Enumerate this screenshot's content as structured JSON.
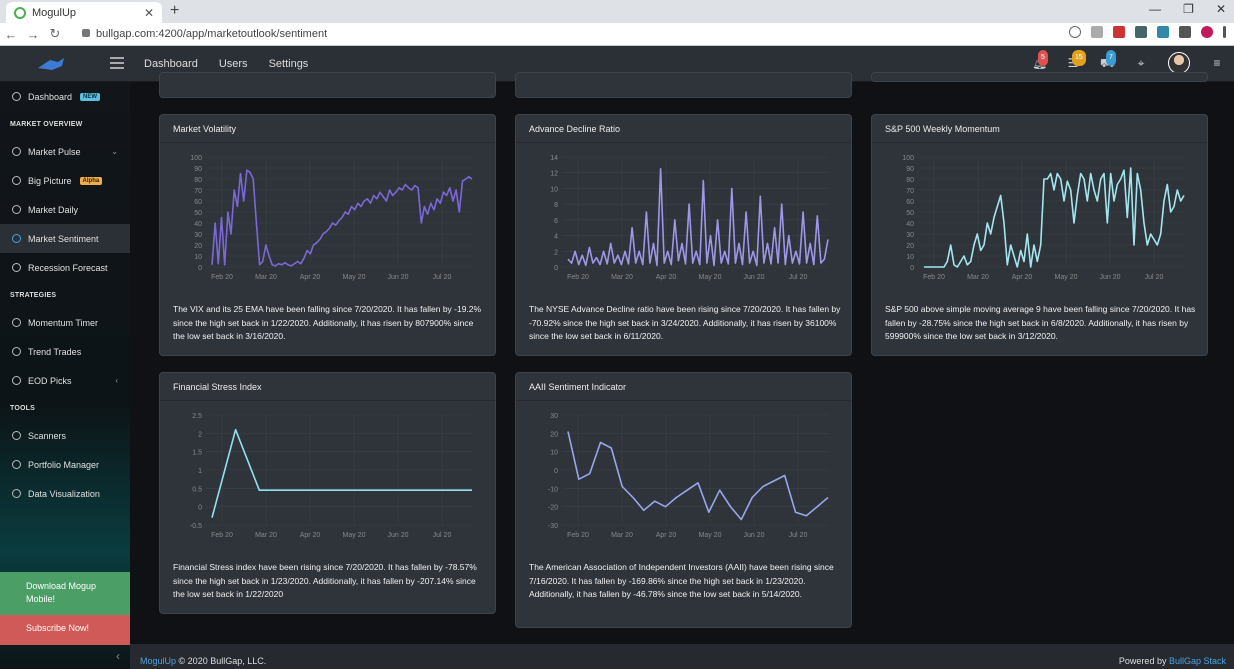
{
  "browser": {
    "tab_title": "MogulUp",
    "url": "bullgap.com:4200/app/marketoutlook/sentiment"
  },
  "header": {
    "nav": [
      "Dashboard",
      "Users",
      "Settings"
    ],
    "badges": {
      "notifications": "5",
      "list": "15",
      "cart": "7"
    }
  },
  "sidebar": {
    "dashboard": "Dashboard",
    "dashboard_tag": "NEW",
    "market_overview": "MARKET OVERVIEW",
    "market_pulse": "Market Pulse",
    "big_picture": "Big Picture",
    "big_picture_tag": "Alpha",
    "market_daily": "Market Daily",
    "market_sentiment": "Market Sentiment",
    "recession_forecast": "Recession Forecast",
    "strategies": "STRATEGIES",
    "momentum_timer": "Momentum Timer",
    "trend_trades": "Trend Trades",
    "eod_picks": "EOD Picks",
    "tools": "TOOLS",
    "scanners": "Scanners",
    "portfolio_manager": "Portfolio Manager",
    "data_visualization": "Data Visualization",
    "download": "Download Mogup Mobile!",
    "subscribe": "Subscribe Now!"
  },
  "cards": [
    {
      "title": "Market Volatility",
      "description": "The VIX and its 25 EMA have been falling since 7/20/2020. It has fallen by -19.2% since the high set back in 1/22/2020. Additionally, it has risen by 807900% since the low set back in 3/16/2020."
    },
    {
      "title": "Advance Decline Ratio",
      "description": "The NYSE Advance Decline ratio have been rising since 7/20/2020. It has fallen by -70.92% since the high set back in 3/24/2020. Additionally, it has risen by 36100% since the low set back in 6/11/2020."
    },
    {
      "title": "S&P 500 Weekly Momentum",
      "description": "S&P 500 above simple moving average 9 have been falling since 7/20/2020. It has fallen by -28.75% since the high set back in 6/8/2020. Additionally, it has risen by 599900% since the low set back in 3/12/2020."
    },
    {
      "title": "Financial Stress Index",
      "description": "Financial Stress index have been rising since 7/20/2020. It has fallen by -78.57% since the high set back in 1/23/2020. Additionally, it has fallen by -207.14% since the low set back in 1/22/2020"
    },
    {
      "title": "AAII Sentiment Indicator",
      "description": "The American Association of Independent Investors (AAII) have been rising since 7/16/2020. It has fallen by -169.86% since the high set back in 1/23/2020. Additionally, it has fallen by -46.78% since the low set back in 5/14/2020."
    }
  ],
  "chart_data": [
    {
      "type": "line",
      "title": "Market Volatility",
      "color": "#7b68d6",
      "x_ticks": [
        "Feb 20",
        "Mar 20",
        "Apr 20",
        "May 20",
        "Jun 20",
        "Jul 20"
      ],
      "ylim": [
        0,
        100
      ],
      "y_ticks": [
        0,
        10,
        20,
        30,
        40,
        50,
        60,
        70,
        80,
        90,
        100
      ],
      "values": [
        2,
        40,
        3,
        45,
        2,
        50,
        30,
        70,
        55,
        85,
        60,
        88,
        86,
        80,
        40,
        2,
        5,
        20,
        10,
        2,
        1,
        3,
        2,
        4,
        2,
        1,
        3,
        5,
        3,
        8,
        15,
        12,
        20,
        22,
        25,
        30,
        32,
        35,
        40,
        38,
        42,
        45,
        50,
        48,
        55,
        52,
        58,
        55,
        60,
        62,
        58,
        65,
        62,
        68,
        64,
        60,
        70,
        65,
        68,
        72,
        70,
        75,
        72,
        70,
        74,
        72,
        40,
        55,
        48,
        58,
        52,
        62,
        58,
        68,
        65,
        72,
        60,
        70,
        50,
        78,
        80,
        82,
        80
      ]
    },
    {
      "type": "line",
      "title": "Advance Decline Ratio",
      "color": "#9f96e8",
      "x_ticks": [
        "Feb 20",
        "Mar 20",
        "Apr 20",
        "May 20",
        "Jun 20",
        "Jul 20"
      ],
      "ylim": [
        0,
        14
      ],
      "y_ticks": [
        0,
        2,
        4,
        6,
        8,
        10,
        12,
        14
      ],
      "values": [
        1,
        0.5,
        2,
        0.3,
        1.5,
        0.2,
        2.5,
        0.5,
        1.2,
        0.3,
        2,
        0.4,
        3,
        0.5,
        1.5,
        0.3,
        2,
        0.4,
        5,
        0.5,
        2,
        0.3,
        7,
        0.5,
        3,
        0.2,
        12.5,
        0.5,
        2,
        0.3,
        6,
        0.8,
        3,
        0.4,
        8,
        0.5,
        2,
        0.3,
        11,
        0.5,
        4,
        0.2,
        6,
        0.5,
        2,
        0.4,
        10,
        0.5,
        3,
        0.3,
        7,
        0.5,
        2,
        0.2,
        9,
        0.5,
        3,
        0.4,
        5,
        0.5,
        8,
        0.3,
        4,
        0.5,
        2,
        0.4,
        7,
        0.5,
        3,
        0.3,
        6.5,
        0.5,
        1,
        3.5
      ]
    },
    {
      "type": "line",
      "title": "S&P 500 Weekly Momentum",
      "color": "#a3e6ee",
      "x_ticks": [
        "Feb 20",
        "Mar 20",
        "Apr 20",
        "May 20",
        "Jun 20",
        "Jul 20"
      ],
      "ylim": [
        0,
        100
      ],
      "y_ticks": [
        0,
        10,
        20,
        30,
        40,
        50,
        60,
        70,
        80,
        90,
        100
      ],
      "values": [
        0,
        0,
        0,
        0,
        0,
        0,
        0,
        5,
        20,
        2,
        0,
        5,
        10,
        2,
        5,
        20,
        30,
        15,
        20,
        40,
        30,
        45,
        55,
        65,
        40,
        2,
        20,
        10,
        0,
        15,
        5,
        30,
        0,
        20,
        5,
        20,
        80,
        80,
        85,
        70,
        85,
        80,
        60,
        78,
        70,
        40,
        65,
        85,
        80,
        60,
        85,
        70,
        60,
        80,
        85,
        40,
        85,
        60,
        75,
        80,
        88,
        45,
        90,
        20,
        85,
        70,
        40,
        20,
        30,
        25,
        20,
        30,
        60,
        75,
        50,
        55,
        70,
        60,
        65
      ]
    },
    {
      "type": "line",
      "title": "Financial Stress Index",
      "color": "#8fe3ee",
      "x_ticks": [
        "Feb 20",
        "Mar 20",
        "Apr 20",
        "May 20",
        "Jun 20",
        "Jul 20"
      ],
      "ylim": [
        -0.5,
        2.5
      ],
      "y_ticks": [
        -0.5,
        0,
        0.5,
        1,
        1.5,
        2,
        2.5
      ],
      "values": [
        -0.3,
        2.1,
        0.45,
        0.45,
        0.45,
        0.45,
        0.45,
        0.45,
        0.45,
        0.45,
        0.45,
        0.45
      ]
    },
    {
      "type": "line",
      "title": "AAII Sentiment Indicator",
      "color": "#9aa5ec",
      "x_ticks": [
        "Feb 20",
        "Mar 20",
        "Apr 20",
        "May 20",
        "Jun 20",
        "Jul 20"
      ],
      "ylim": [
        -30,
        30
      ],
      "y_ticks": [
        -30,
        -20,
        -10,
        0,
        10,
        20,
        30
      ],
      "values": [
        21,
        -5,
        -2,
        15,
        12,
        -9,
        -15,
        -22,
        -17,
        -20,
        -15,
        -11,
        -7,
        -23,
        -11,
        -20,
        -27,
        -15,
        -9,
        -6,
        -3,
        -23,
        -25,
        -20,
        -15
      ]
    }
  ],
  "footer": {
    "brand": "MogulUp",
    "copyright": "© 2020 BullGap, LLC.",
    "powered_by": "Powered by",
    "stack": "BullGap Stack"
  }
}
